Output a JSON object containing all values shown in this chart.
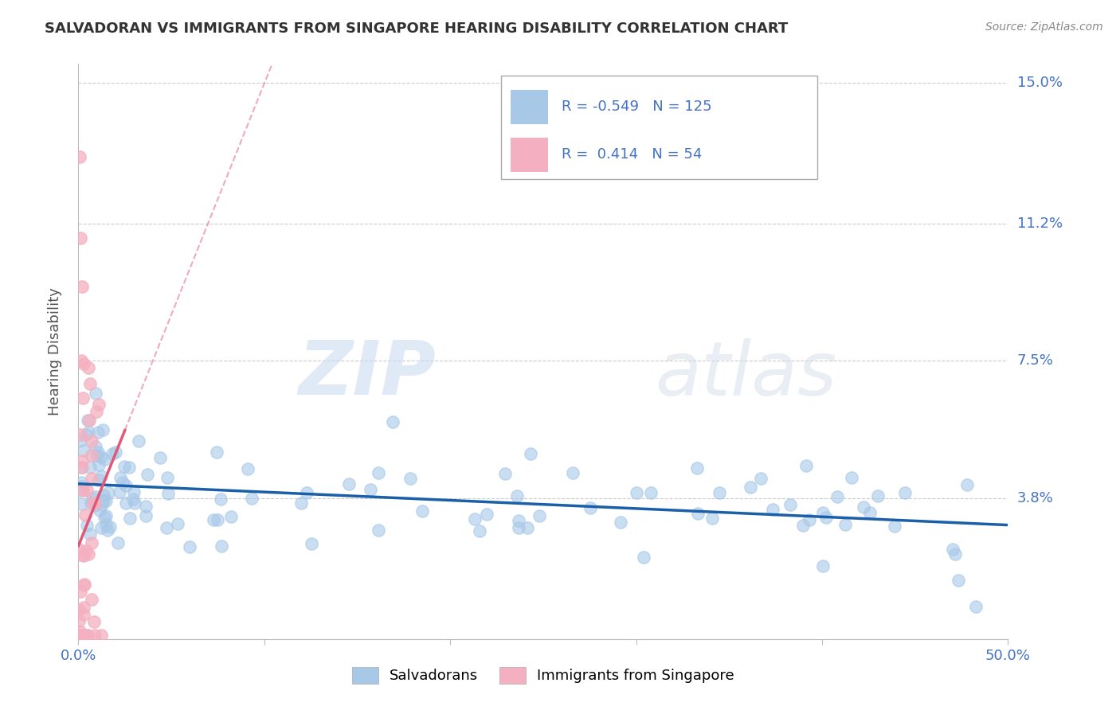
{
  "title": "SALVADORAN VS IMMIGRANTS FROM SINGAPORE HEARING DISABILITY CORRELATION CHART",
  "source": "Source: ZipAtlas.com",
  "ylabel": "Hearing Disability",
  "watermark_zip": "ZIP",
  "watermark_atlas": "atlas",
  "xmin": 0.0,
  "xmax": 0.5,
  "ymin": 0.0,
  "ymax": 0.155,
  "yticks": [
    0.0,
    0.038,
    0.075,
    0.112,
    0.15
  ],
  "ytick_labels": [
    "",
    "3.8%",
    "7.5%",
    "11.2%",
    "15.0%"
  ],
  "xtick_vals": [
    0.0,
    0.1,
    0.2,
    0.3,
    0.4,
    0.5
  ],
  "xtick_labels": [
    "0.0%",
    "",
    "",
    "",
    "",
    "50.0%"
  ],
  "legend_R1": "-0.549",
  "legend_N1": "125",
  "legend_R2": "0.414",
  "legend_N2": "54",
  "color_blue": "#a8c8e8",
  "color_pink": "#f4b0c0",
  "color_blue_line": "#1a5fa8",
  "color_pink_line": "#e05878",
  "color_axis_label": "#4472c4",
  "background_color": "#ffffff",
  "grid_color": "#cccccc",
  "title_color": "#333333",
  "source_color": "#888888",
  "ylabel_color": "#555555"
}
